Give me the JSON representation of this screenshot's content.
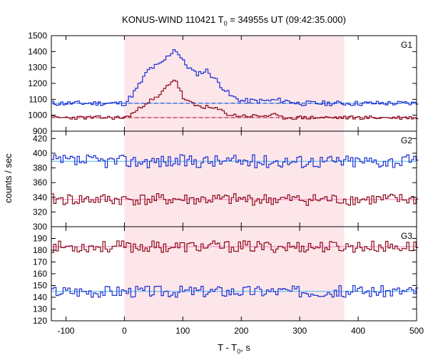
{
  "chart_data": {
    "type": "line",
    "title": "KONUS-WIND 110421 T0 = 34955s UT (09:42:35.000)",
    "title_main": "KONUS-WIND 110421 T",
    "title_sub": "0",
    "title_rest": " = 34955s UT (09:42:35.000)",
    "xlabel_main": "T - T",
    "xlabel_sub": "0",
    "xlabel_rest": ", s",
    "ylabel": "counts / sec",
    "xlim": [
      -125,
      500
    ],
    "x_ticks": [
      -100,
      0,
      100,
      200,
      300,
      400,
      500
    ],
    "grid": false,
    "highlight_interval": [
      0,
      376
    ],
    "colors": {
      "high_band_line": "#8b0a1a",
      "high_band_fit": "#f080c0",
      "low_band_line": "#1a2fd0",
      "low_band_fit": "#46b8f0",
      "highlight": "#fde6ea",
      "frame": "#000000"
    },
    "panels": [
      {
        "label": "G1",
        "ylim": [
          900,
          1500
        ],
        "y_ticks": [
          900,
          1000,
          1100,
          1200,
          1300,
          1400,
          1500
        ],
        "series": [
          {
            "color_key": "low",
            "base": 1075,
            "noise": 16,
            "seed": 11,
            "dashed_level": 1075,
            "bumps": [
              [
                20,
                1170
              ],
              [
                40,
                1290
              ],
              [
                60,
                1320
              ],
              [
                80,
                1400
              ],
              [
                85,
                1420
              ],
              [
                100,
                1330
              ],
              [
                120,
                1260
              ],
              [
                140,
                1280
              ],
              [
                160,
                1200
              ],
              [
                180,
                1120
              ],
              [
                200,
                1090
              ],
              [
                240,
                1090
              ],
              [
                260,
                1095
              ],
              [
                290,
                1085
              ]
            ]
          },
          {
            "color_key": "high",
            "base": 985,
            "noise": 12,
            "seed": 23,
            "dashed_level": 985,
            "bumps": [
              [
                20,
                1030
              ],
              [
                35,
                1080
              ],
              [
                55,
                1110
              ],
              [
                75,
                1200
              ],
              [
                85,
                1230
              ],
              [
                100,
                1100
              ],
              [
                120,
                1060
              ],
              [
                140,
                1050
              ],
              [
                160,
                1035
              ],
              [
                180,
                1000
              ],
              [
                220,
                995
              ],
              [
                260,
                1000
              ]
            ]
          }
        ]
      },
      {
        "label": "G2",
        "ylim": [
          300,
          430
        ],
        "y_ticks": [
          300,
          320,
          340,
          360,
          380,
          400,
          420
        ],
        "series": [
          {
            "color_key": "low",
            "base": 389,
            "noise": 9,
            "seed": 37,
            "dashed_level": null,
            "bumps": []
          },
          {
            "color_key": "high",
            "base": 337,
            "noise": 8,
            "seed": 41,
            "dashed_level": null,
            "bumps": []
          }
        ]
      },
      {
        "label": "G3",
        "ylim": [
          120,
          200
        ],
        "y_ticks": [
          120,
          130,
          140,
          150,
          160,
          170,
          180,
          190
        ],
        "series": [
          {
            "color_key": "high",
            "base": 183,
            "noise": 5,
            "seed": 53,
            "dashed_level": null,
            "bumps": []
          },
          {
            "color_key": "low",
            "base": 145,
            "noise": 5,
            "seed": 67,
            "dashed_level": null,
            "bumps": []
          }
        ]
      }
    ]
  }
}
